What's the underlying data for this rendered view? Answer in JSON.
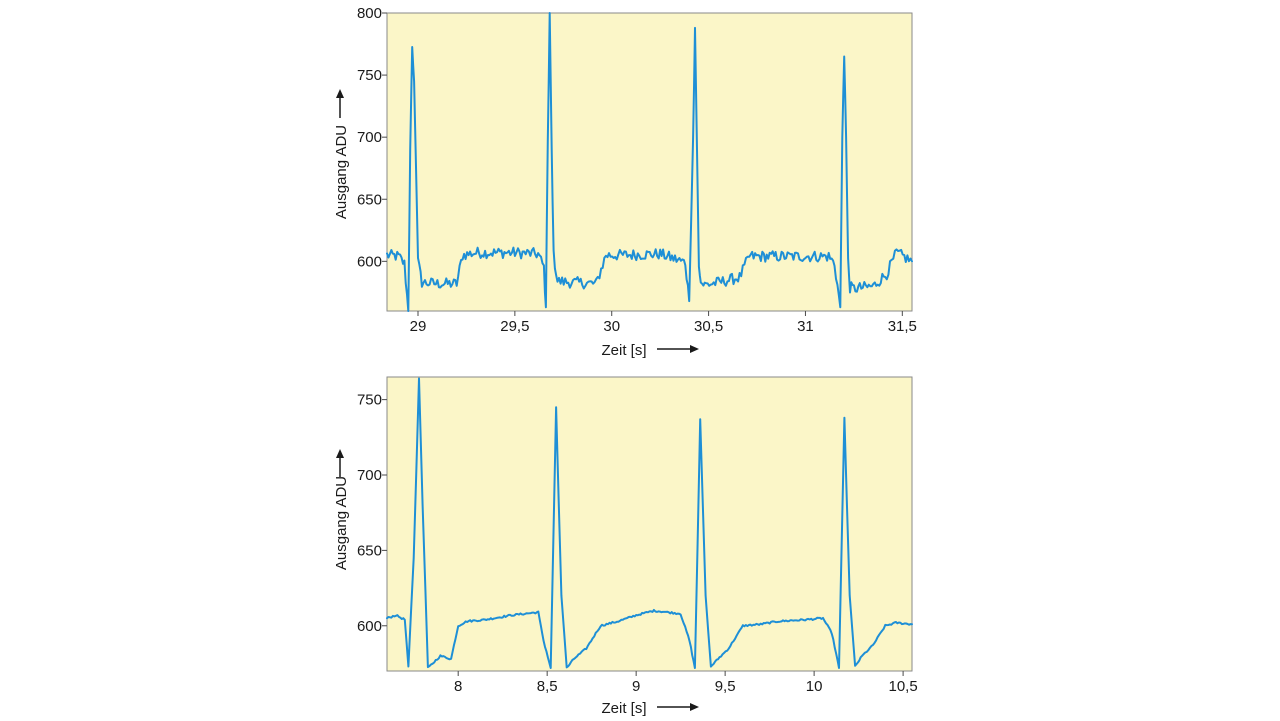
{
  "colors": {
    "trace": "#1e8fd6",
    "background": "#fbf6c8"
  },
  "chart_data": [
    {
      "type": "line",
      "title": "",
      "xlabel": "Zeit [s]",
      "ylabel": "Ausgang ADU",
      "xlim": [
        28.84,
        31.55
      ],
      "ylim": [
        560,
        800
      ],
      "xticks": [
        29,
        29.5,
        30,
        30.5,
        31,
        31.5
      ],
      "xtick_labels": [
        "29",
        "29,5",
        "30",
        "30,5",
        "31",
        "31,5"
      ],
      "yticks": [
        600,
        650,
        700,
        750,
        800
      ],
      "ytick_labels": [
        "600",
        "650",
        "700",
        "750",
        "800"
      ],
      "noisy": true,
      "series": [
        {
          "x": [
            28.84,
            28.9,
            28.93,
            28.95,
            28.96,
            28.97,
            28.98,
            29.0,
            29.02,
            29.1,
            29.2,
            29.23,
            29.3,
            29.5,
            29.62,
            29.65,
            29.66,
            29.67,
            29.68,
            29.69,
            29.7,
            29.72,
            29.8,
            29.92,
            29.97,
            30.05,
            30.25,
            30.38,
            30.4,
            30.42,
            30.43,
            30.44,
            30.45,
            30.46,
            30.48,
            30.55,
            30.66,
            30.71,
            30.8,
            31.0,
            31.12,
            31.15,
            31.18,
            31.19,
            31.2,
            31.21,
            31.22,
            31.23,
            31.25,
            31.35,
            31.42,
            31.47,
            31.55
          ],
          "y": [
            605,
            604,
            598,
            560,
            690,
            775,
            745,
            600,
            583,
            582,
            582,
            605,
            607,
            607,
            606,
            595,
            563,
            698,
            800,
            690,
            605,
            584,
            583,
            582,
            605,
            605,
            606,
            599,
            568,
            700,
            788,
            690,
            600,
            583,
            581,
            583,
            587,
            604,
            604,
            604,
            604,
            598,
            563,
            700,
            765,
            700,
            600,
            579,
            578,
            580,
            590,
            607,
            600
          ]
        }
      ]
    },
    {
      "type": "line",
      "title": "",
      "xlabel": "Zeit [s]",
      "ylabel": "Ausgang ADU",
      "xlim": [
        7.6,
        10.55
      ],
      "ylim": [
        570,
        765
      ],
      "xticks": [
        8,
        8.5,
        9,
        9.5,
        10,
        10.5
      ],
      "xtick_labels": [
        "8",
        "8,5",
        "9",
        "9,5",
        "10",
        "10,5"
      ],
      "yticks": [
        600,
        650,
        700,
        750
      ],
      "ytick_labels": [
        "600",
        "650",
        "700",
        "750"
      ],
      "noisy": false,
      "series": [
        {
          "x": [
            7.6,
            7.65,
            7.7,
            7.72,
            7.75,
            7.78,
            7.8,
            7.83,
            7.9,
            7.96,
            8.0,
            8.05,
            8.15,
            8.3,
            8.45,
            8.48,
            8.52,
            8.55,
            8.58,
            8.61,
            8.65,
            8.72,
            8.8,
            8.9,
            9.0,
            9.1,
            9.25,
            9.3,
            9.33,
            9.36,
            9.39,
            9.42,
            9.46,
            9.52,
            9.6,
            9.7,
            9.8,
            9.95,
            10.05,
            10.1,
            10.14,
            10.17,
            10.2,
            10.23,
            10.27,
            10.33,
            10.4,
            10.46,
            10.55
          ],
          "y": [
            605,
            607,
            604,
            573,
            645,
            764,
            680,
            572,
            580,
            578,
            600,
            603,
            604,
            607,
            609,
            590,
            572,
            745,
            620,
            572,
            578,
            585,
            600,
            603,
            607,
            610,
            608,
            590,
            572,
            737,
            620,
            573,
            578,
            585,
            600,
            601,
            603,
            604,
            605,
            595,
            572,
            738,
            620,
            573,
            580,
            587,
            600,
            602,
            601
          ]
        }
      ]
    }
  ]
}
